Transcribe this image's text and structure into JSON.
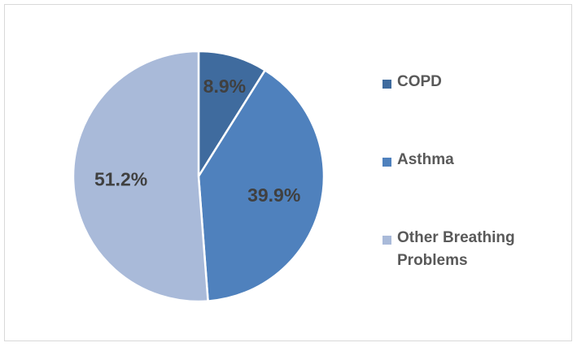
{
  "chart_data": {
    "type": "pie",
    "categories": [
      "COPD",
      "Asthma",
      "Other Breathing Problems"
    ],
    "values": [
      8.9,
      39.9,
      51.2
    ],
    "labels": [
      "8.9%",
      "39.9%",
      "51.2%"
    ],
    "colors": [
      "#3f6b9e",
      "#4f81bd",
      "#a9bad9"
    ],
    "legend_position": "right",
    "title": ""
  },
  "legend": {
    "items": [
      {
        "label_line1": "COPD",
        "label_line2": ""
      },
      {
        "label_line1": "Asthma",
        "label_line2": ""
      },
      {
        "label_line1": "Other Breathing",
        "label_line2": "Problems"
      }
    ]
  }
}
